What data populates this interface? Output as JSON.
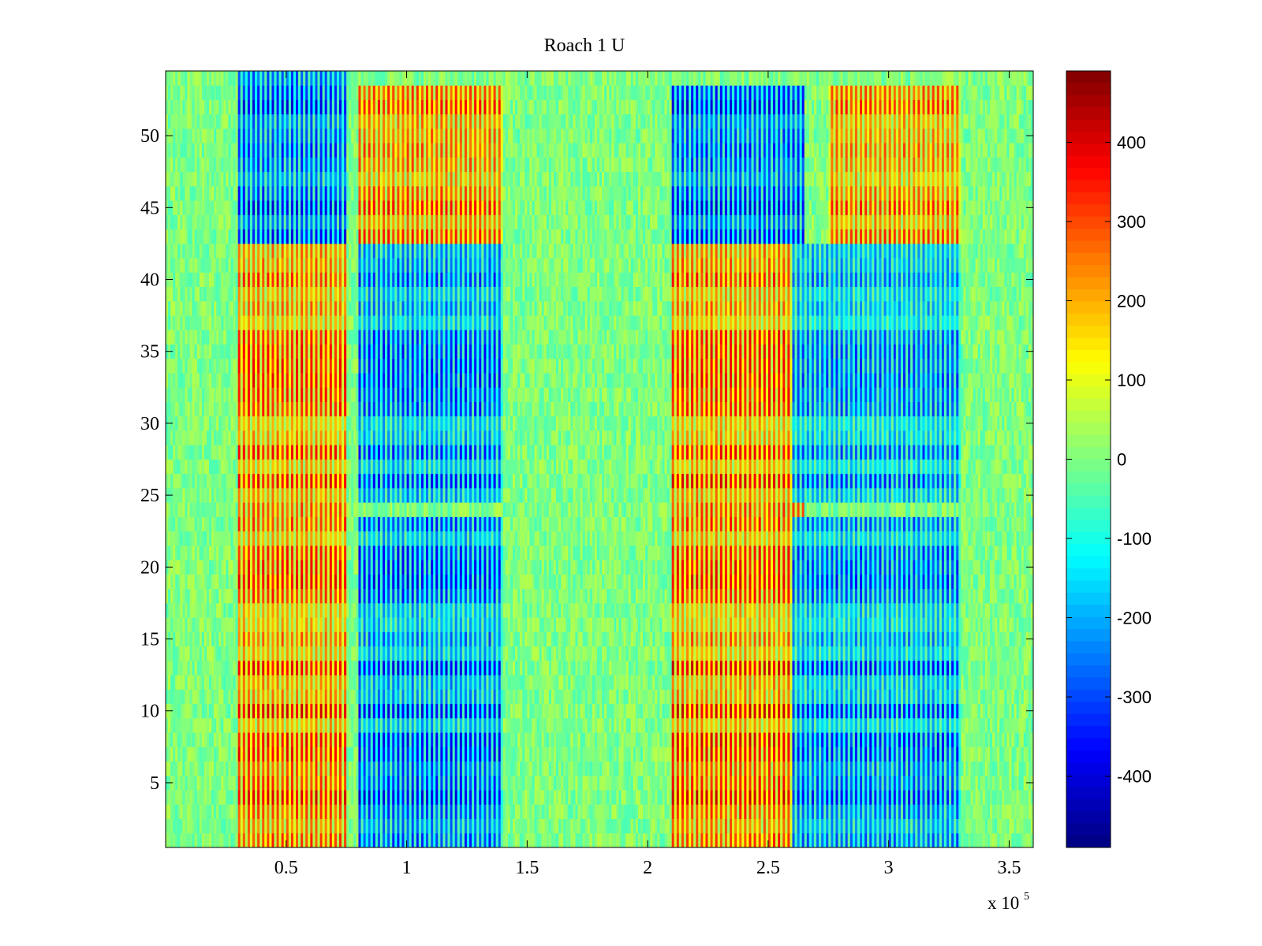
{
  "chart_data": {
    "type": "heatmap",
    "title": "Roach 1 U",
    "xlabel": "",
    "ylabel": "",
    "x_multiplier_label": "x 10",
    "x_multiplier_exponent": "5",
    "xlim": [
      0,
      360000
    ],
    "ylim": [
      0.5,
      54.5
    ],
    "x_tick_values": [
      50000,
      100000,
      150000,
      200000,
      250000,
      300000,
      350000
    ],
    "x_tick_labels": [
      "0.5",
      "1",
      "1.5",
      "2",
      "2.5",
      "3",
      "3.5"
    ],
    "y_tick_values": [
      5,
      10,
      15,
      20,
      25,
      30,
      35,
      40,
      45,
      50
    ],
    "y_tick_labels": [
      "5",
      "10",
      "15",
      "20",
      "25",
      "30",
      "35",
      "40",
      "45",
      "50"
    ],
    "rows": 54,
    "columns": 360,
    "colormap": "jet",
    "clim": [
      -490,
      490
    ],
    "colorbar_tick_values": [
      400,
      300,
      200,
      100,
      0,
      -100,
      -200,
      -300,
      -400
    ],
    "colorbar_tick_labels": [
      "400",
      "300",
      "200",
      "100",
      "0",
      "-100",
      "-200",
      "-300",
      "-400"
    ],
    "blocks": [
      {
        "x": [
          30000,
          75000
        ],
        "y": [
          1,
          42
        ],
        "value": 330
      },
      {
        "x": [
          30000,
          75000
        ],
        "y": [
          43,
          54
        ],
        "value": -350
      },
      {
        "x": [
          80000,
          140000
        ],
        "y": [
          1,
          23
        ],
        "value": -330
      },
      {
        "x": [
          80000,
          140000
        ],
        "y": [
          25,
          42
        ],
        "value": -320
      },
      {
        "x": [
          80000,
          140000
        ],
        "y": [
          43,
          53
        ],
        "value": 320
      },
      {
        "x": [
          210000,
          265000
        ],
        "y": [
          1,
          42
        ],
        "value": 340
      },
      {
        "x": [
          210000,
          265000
        ],
        "y": [
          43,
          53
        ],
        "value": -360
      },
      {
        "x": [
          260000,
          330000
        ],
        "y": [
          1,
          23
        ],
        "value": -300
      },
      {
        "x": [
          260000,
          330000
        ],
        "y": [
          25,
          42
        ],
        "value": -280
      },
      {
        "x": [
          275000,
          330000
        ],
        "y": [
          43,
          53
        ],
        "value": 300
      }
    ],
    "grid": false,
    "legend": "colorbar-right",
    "colors": {
      "background": "#ffffff",
      "axes_edge": "#000000"
    }
  }
}
